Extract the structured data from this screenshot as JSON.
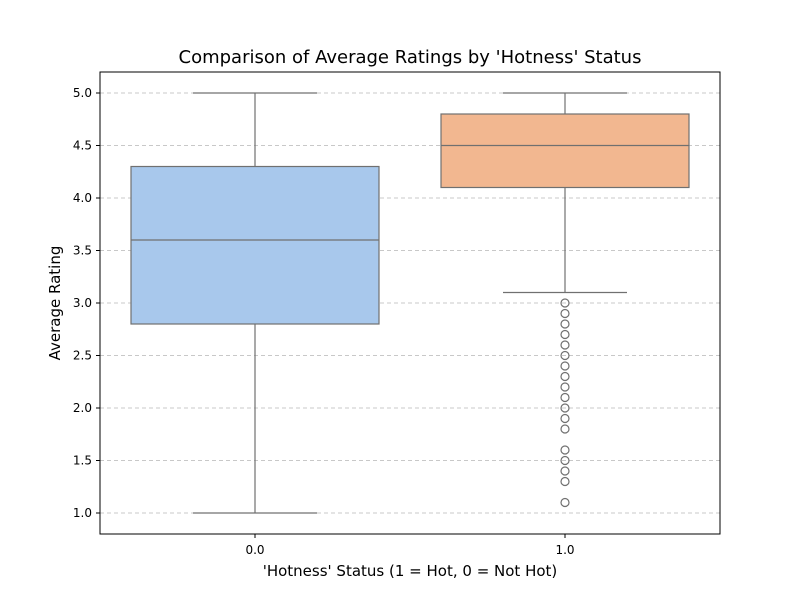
{
  "chart_data": {
    "type": "box",
    "title": "Comparison of Average Ratings by 'Hotness' Status",
    "xlabel": "'Hotness' Status (1 = Hot, 0 = Not Hot)",
    "ylabel": "Average Rating",
    "categories": [
      "0.0",
      "1.0"
    ],
    "ylim": [
      0.8,
      5.2
    ],
    "yticks": [
      1.0,
      1.5,
      2.0,
      2.5,
      3.0,
      3.5,
      4.0,
      4.5,
      5.0
    ],
    "grid": {
      "y": true,
      "style": "dashed"
    },
    "boxes": [
      {
        "category": "0.0",
        "whisker_low": 1.0,
        "q1": 2.8,
        "median": 3.6,
        "q3": 4.3,
        "whisker_high": 5.0,
        "outliers": [],
        "color": "#a8c8ec"
      },
      {
        "category": "1.0",
        "whisker_low": 3.1,
        "q1": 4.1,
        "median": 4.5,
        "q3": 4.8,
        "whisker_high": 5.0,
        "outliers": [
          3.0,
          2.9,
          2.8,
          2.7,
          2.6,
          2.5,
          2.4,
          2.3,
          2.2,
          2.1,
          2.0,
          1.9,
          1.8,
          1.6,
          1.5,
          1.4,
          1.3,
          1.1
        ],
        "color": "#f2b790"
      }
    ],
    "line_color": "#707070",
    "grid_color": "#c8c8c8"
  }
}
